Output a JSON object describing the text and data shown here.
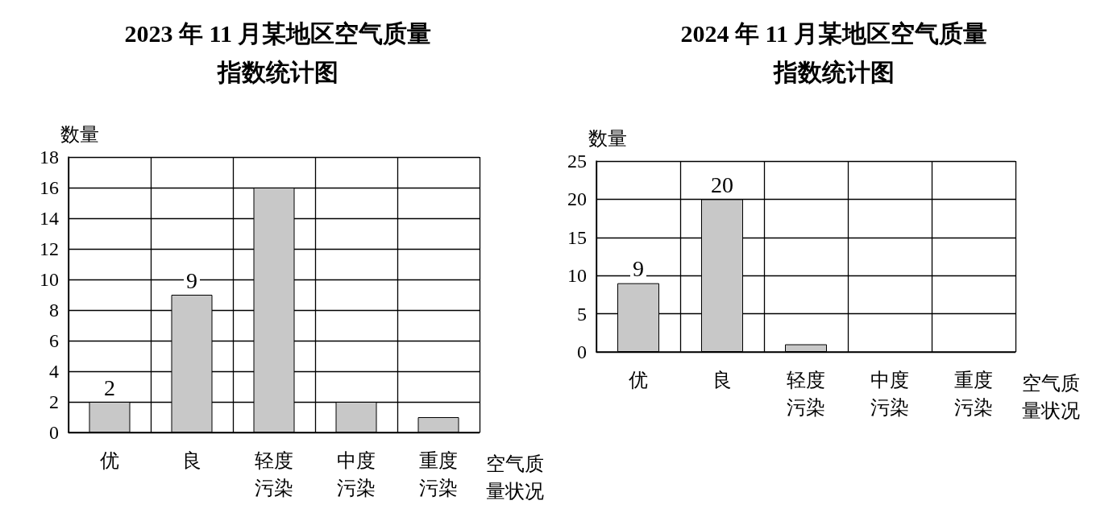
{
  "chart_data": [
    {
      "type": "bar",
      "title": "2023 年 11 月某地区空气质量指数统计图",
      "xlabel": "空气质量状况",
      "ylabel": "数量",
      "categories": [
        "优",
        "良",
        "轻度污染",
        "中度污染",
        "重度污染"
      ],
      "series": [
        {
          "color": "#c8c8c8",
          "values": [
            2,
            9,
            16,
            2,
            1
          ],
          "value_labels": [
            "2",
            "9",
            null,
            null,
            null
          ]
        }
      ],
      "ylim": [
        0,
        18
      ],
      "yticks": [
        0,
        2,
        4,
        6,
        8,
        10,
        12,
        14,
        16,
        18
      ],
      "grid": true
    },
    {
      "type": "bar",
      "title": "2024 年 11 月某地区空气质量指数统计图",
      "xlabel": "空气质量状况",
      "ylabel": "数量",
      "categories": [
        "优",
        "良",
        "轻度污染",
        "中度污染",
        "重度污染"
      ],
      "series": [
        {
          "color": "#c8c8c8",
          "values": [
            9,
            20,
            1,
            null,
            null
          ],
          "value_labels": [
            "9",
            "20",
            null,
            null,
            null
          ]
        }
      ],
      "ylim": [
        0,
        25
      ],
      "yticks": [
        0,
        5,
        10,
        15,
        20,
        25
      ],
      "grid": true
    }
  ]
}
